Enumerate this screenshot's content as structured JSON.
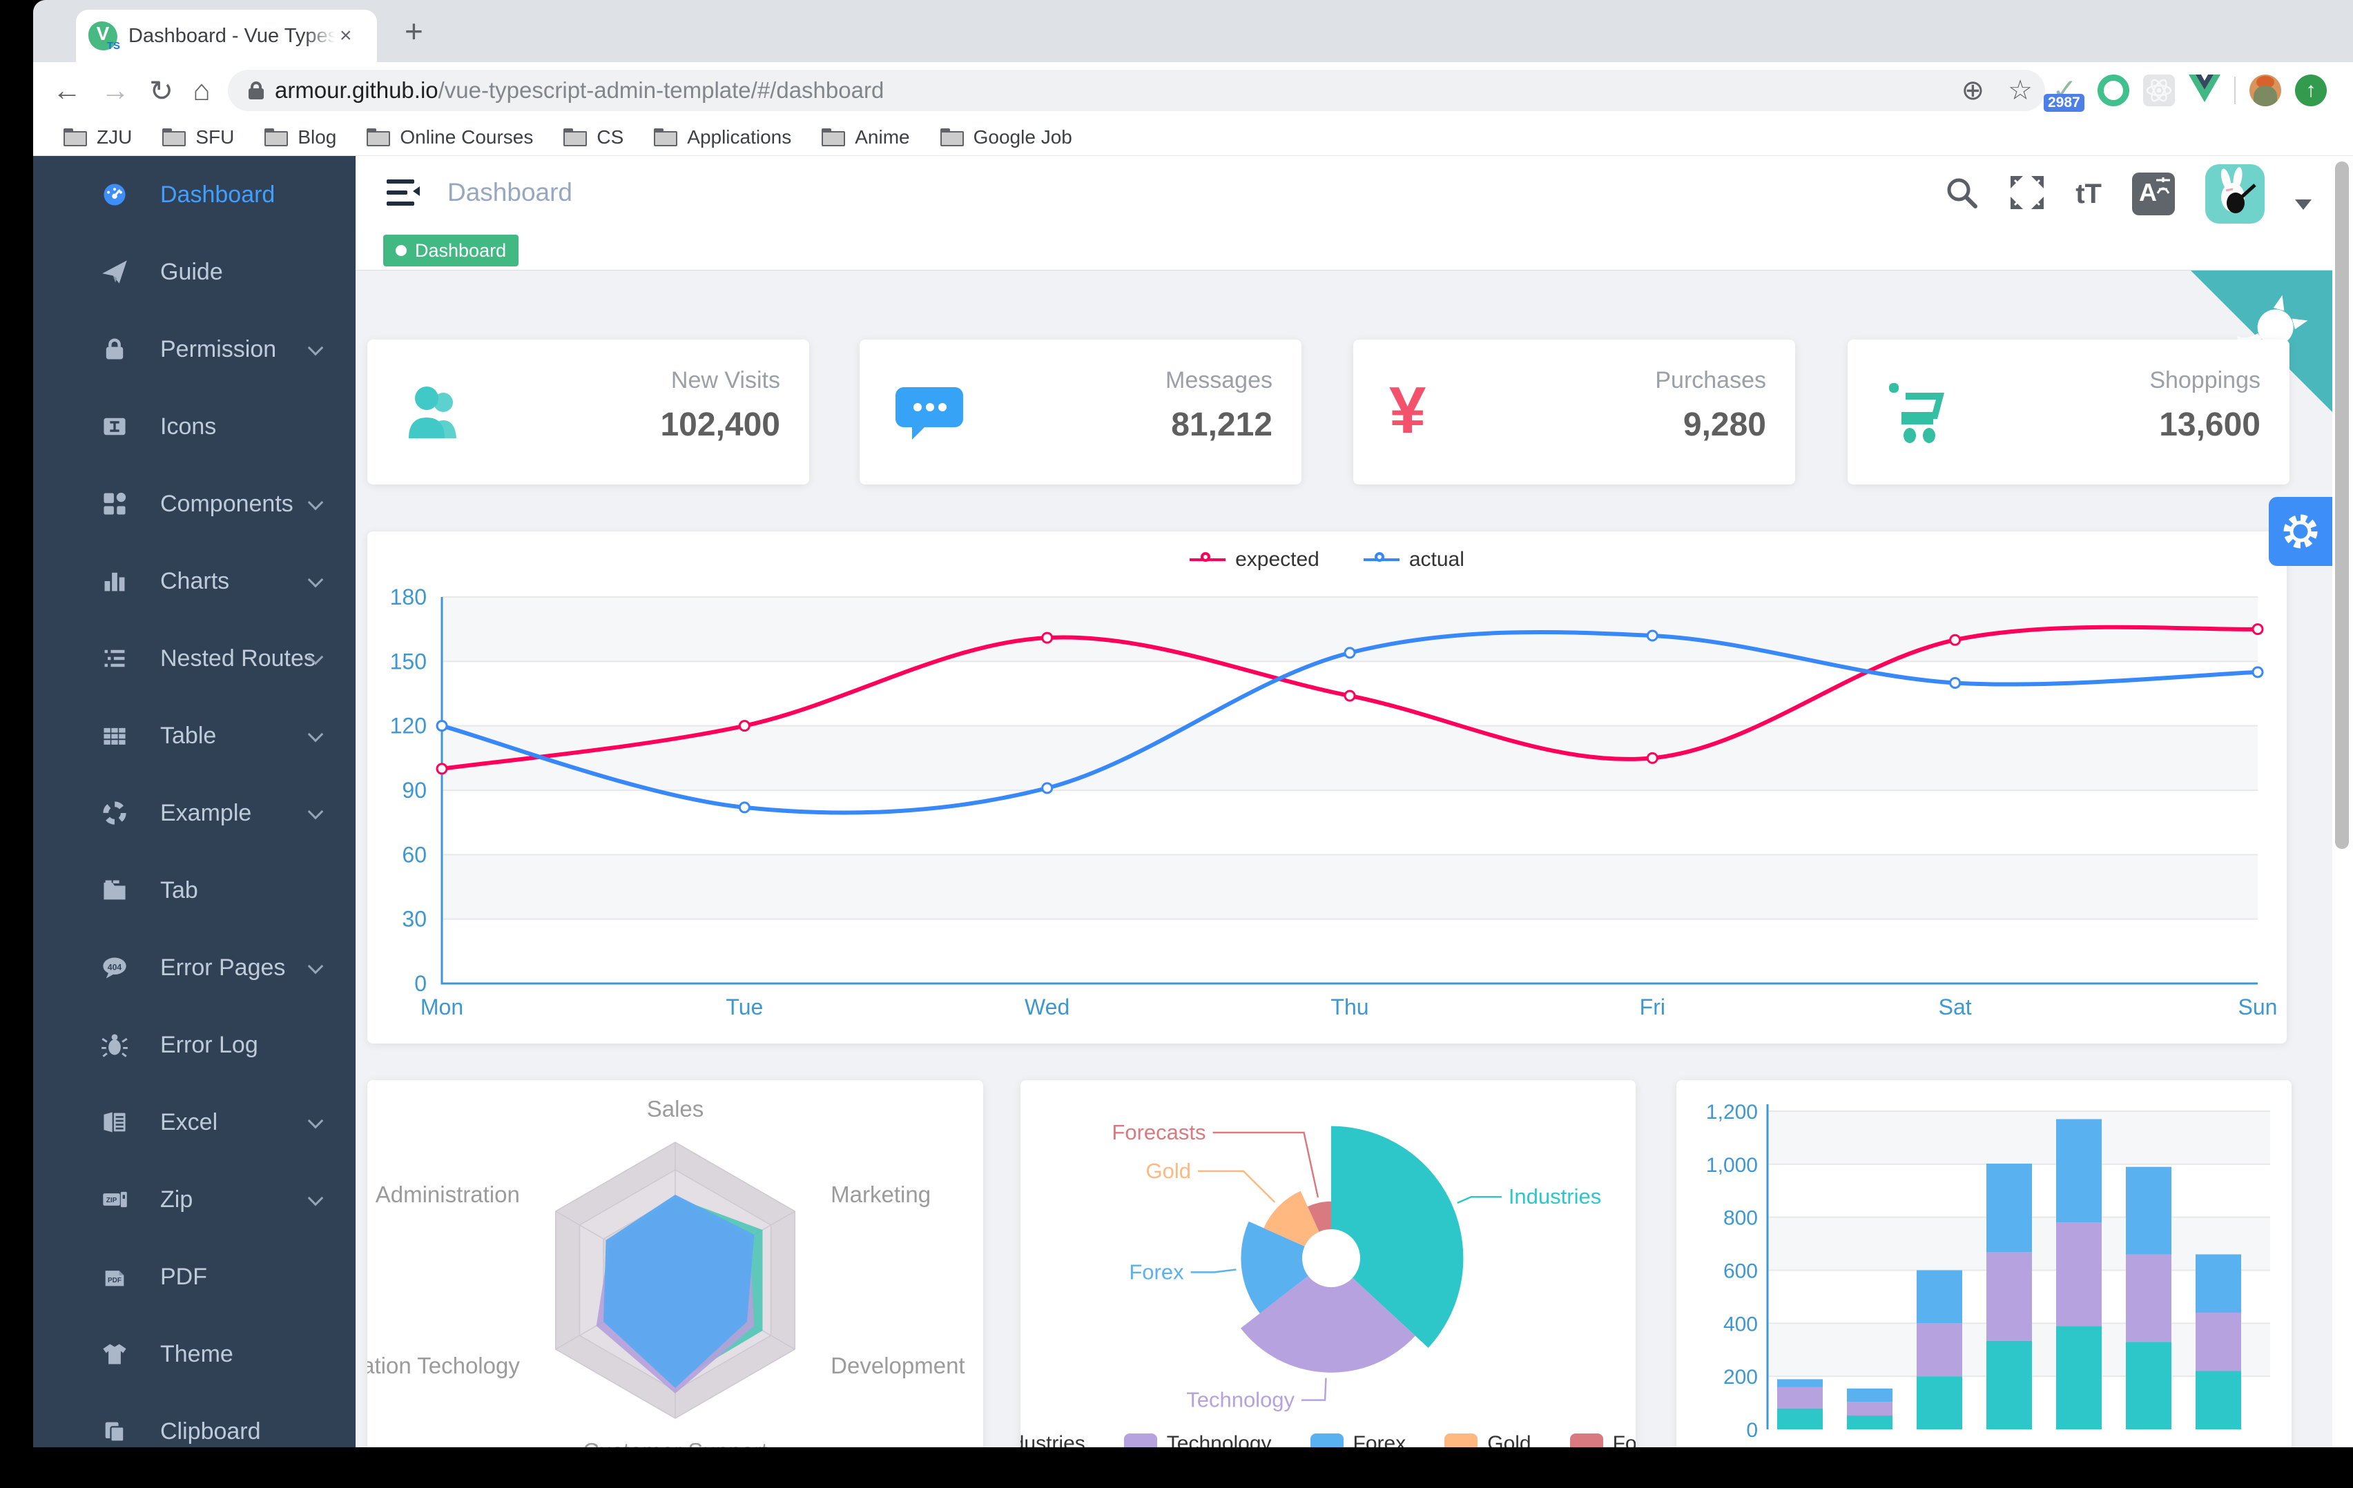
{
  "browser": {
    "tab_title": "Dashboard - Vue Typescript Ad",
    "favicon": {
      "letter": "V",
      "sub": "TS"
    },
    "close_glyph": "×",
    "newtab_glyph": "+",
    "back_glyph": "←",
    "forward_glyph": "→",
    "reload_glyph": "↻",
    "home_glyph": "⌂",
    "url_host": "armour.github.io",
    "url_path": "/vue-typescript-admin-template/#/dashboard",
    "zoom_glyph": "⊕",
    "star_glyph": "☆",
    "extension_badge": "2987",
    "check_glyph": "✓",
    "up_glyph": "↑",
    "bookmarks": [
      "ZJU",
      "SFU",
      "Blog",
      "Online Courses",
      "CS",
      "Applications",
      "Anime",
      "Google Job"
    ]
  },
  "sidebar": {
    "items": [
      {
        "label": "Dashboard",
        "icon": "dashboard-icon",
        "active": true,
        "has_children": false
      },
      {
        "label": "Guide",
        "icon": "paper-plane-icon",
        "active": false,
        "has_children": false
      },
      {
        "label": "Permission",
        "icon": "lock-icon",
        "active": false,
        "has_children": true
      },
      {
        "label": "Icons",
        "icon": "icon-box-icon",
        "active": false,
        "has_children": false
      },
      {
        "label": "Components",
        "icon": "components-icon",
        "active": false,
        "has_children": true
      },
      {
        "label": "Charts",
        "icon": "bar-chart-icon",
        "active": false,
        "has_children": true
      },
      {
        "label": "Nested Routes",
        "icon": "nested-list-icon",
        "active": false,
        "has_children": true
      },
      {
        "label": "Table",
        "icon": "table-grid-icon",
        "active": false,
        "has_children": true
      },
      {
        "label": "Example",
        "icon": "example-ring-icon",
        "active": false,
        "has_children": true
      },
      {
        "label": "Tab",
        "icon": "folder-tab-icon",
        "active": false,
        "has_children": false
      },
      {
        "label": "Error Pages",
        "icon": "error-404-icon",
        "active": false,
        "has_children": true
      },
      {
        "label": "Error Log",
        "icon": "bug-icon",
        "active": false,
        "has_children": false
      },
      {
        "label": "Excel",
        "icon": "excel-doc-icon",
        "active": false,
        "has_children": true
      },
      {
        "label": "Zip",
        "icon": "zip-file-icon",
        "active": false,
        "has_children": true
      },
      {
        "label": "PDF",
        "icon": "pdf-doc-icon",
        "active": false,
        "has_children": false
      },
      {
        "label": "Theme",
        "icon": "tshirt-icon",
        "active": false,
        "has_children": false
      },
      {
        "label": "Clipboard",
        "icon": "clipboard-icon",
        "active": false,
        "has_children": false
      }
    ]
  },
  "navbar": {
    "breadcrumb": "Dashboard",
    "size_glyph": "tT"
  },
  "tags": {
    "active_tag": "Dashboard"
  },
  "stats": [
    {
      "title": "New Visits",
      "value": "102,400",
      "icon": "people-icon",
      "color": "#40c9c6"
    },
    {
      "title": "Messages",
      "value": "81,212",
      "icon": "message-icon",
      "color": "#36a3f7"
    },
    {
      "title": "Purchases",
      "value": "9,280",
      "icon": "yen-money-icon",
      "color": "#f4516c",
      "glyph": "¥"
    },
    {
      "title": "Shoppings",
      "value": "13,600",
      "icon": "shopping-cart-icon",
      "color": "#34bfa3"
    }
  ],
  "colors": {
    "sidebar_bg": "#304156",
    "sidebar_text": "#bfcbd9",
    "active_blue": "#409eff",
    "tag_green": "#42b983",
    "content_bg": "#f0f2f5",
    "axis_blue": "#3e97d1",
    "github_corner": "#4ab7bd",
    "gear_button": "#3e8ef7"
  },
  "chart_data": [
    {
      "type": "line",
      "x": [
        "Mon",
        "Tue",
        "Wed",
        "Thu",
        "Fri",
        "Sat",
        "Sun"
      ],
      "series": [
        {
          "name": "expected",
          "color": "#FF005A",
          "values": [
            100,
            120,
            161,
            134,
            105,
            160,
            165
          ]
        },
        {
          "name": "actual",
          "color": "#3888FA",
          "values": [
            120,
            82,
            91,
            154,
            162,
            140,
            145
          ]
        }
      ],
      "legend": [
        "expected",
        "actual"
      ],
      "legend_position": "top",
      "ylim": [
        0,
        180
      ],
      "ytick_step": 30,
      "grid": true
    },
    {
      "type": "radar",
      "indicators": [
        "Sales",
        "Marketing",
        "Development",
        "Customer Support",
        "Information Techology",
        "Administration"
      ],
      "rings": 5,
      "series": [
        {
          "color": "#4fc5b5",
          "fractions": [
            0.6,
            0.73,
            0.73,
            0.74,
            0.6,
            0.55
          ]
        },
        {
          "color": "#b3a0da",
          "fractions": [
            0.55,
            0.62,
            0.66,
            0.82,
            0.66,
            0.55
          ]
        },
        {
          "color": "#5da8f0",
          "fractions": [
            0.62,
            0.66,
            0.6,
            0.78,
            0.6,
            0.58
          ]
        }
      ]
    },
    {
      "type": "pie",
      "rose": "area",
      "slices": [
        {
          "name": "Industries",
          "value": 320,
          "color": "#2ec7c9"
        },
        {
          "name": "Technology",
          "value": 240,
          "color": "#b6a2de"
        },
        {
          "name": "Forex",
          "value": 149,
          "color": "#5ab1ef"
        },
        {
          "name": "Gold",
          "value": 100,
          "color": "#ffb980"
        },
        {
          "name": "Forecasts",
          "value": 59,
          "color": "#d87a80"
        }
      ],
      "legend": [
        "Industries",
        "Technology",
        "Forex",
        "Gold",
        "Forecasts"
      ],
      "legend_position": "bottom"
    },
    {
      "type": "bar",
      "stacked": true,
      "columns": 7,
      "series": [
        {
          "color": "#2ec7c9",
          "values": [
            79,
            52,
            200,
            334,
            390,
            330,
            220
          ]
        },
        {
          "color": "#b6a2de",
          "values": [
            80,
            52,
            200,
            334,
            390,
            330,
            220
          ]
        },
        {
          "color": "#5ab1ef",
          "values": [
            30,
            50,
            200,
            334,
            390,
            330,
            220
          ]
        }
      ],
      "ylim": [
        0,
        1200
      ],
      "yticks": [
        "0",
        "200",
        "400",
        "600",
        "800",
        "1,000",
        "1,200"
      ],
      "grid": true
    }
  ]
}
